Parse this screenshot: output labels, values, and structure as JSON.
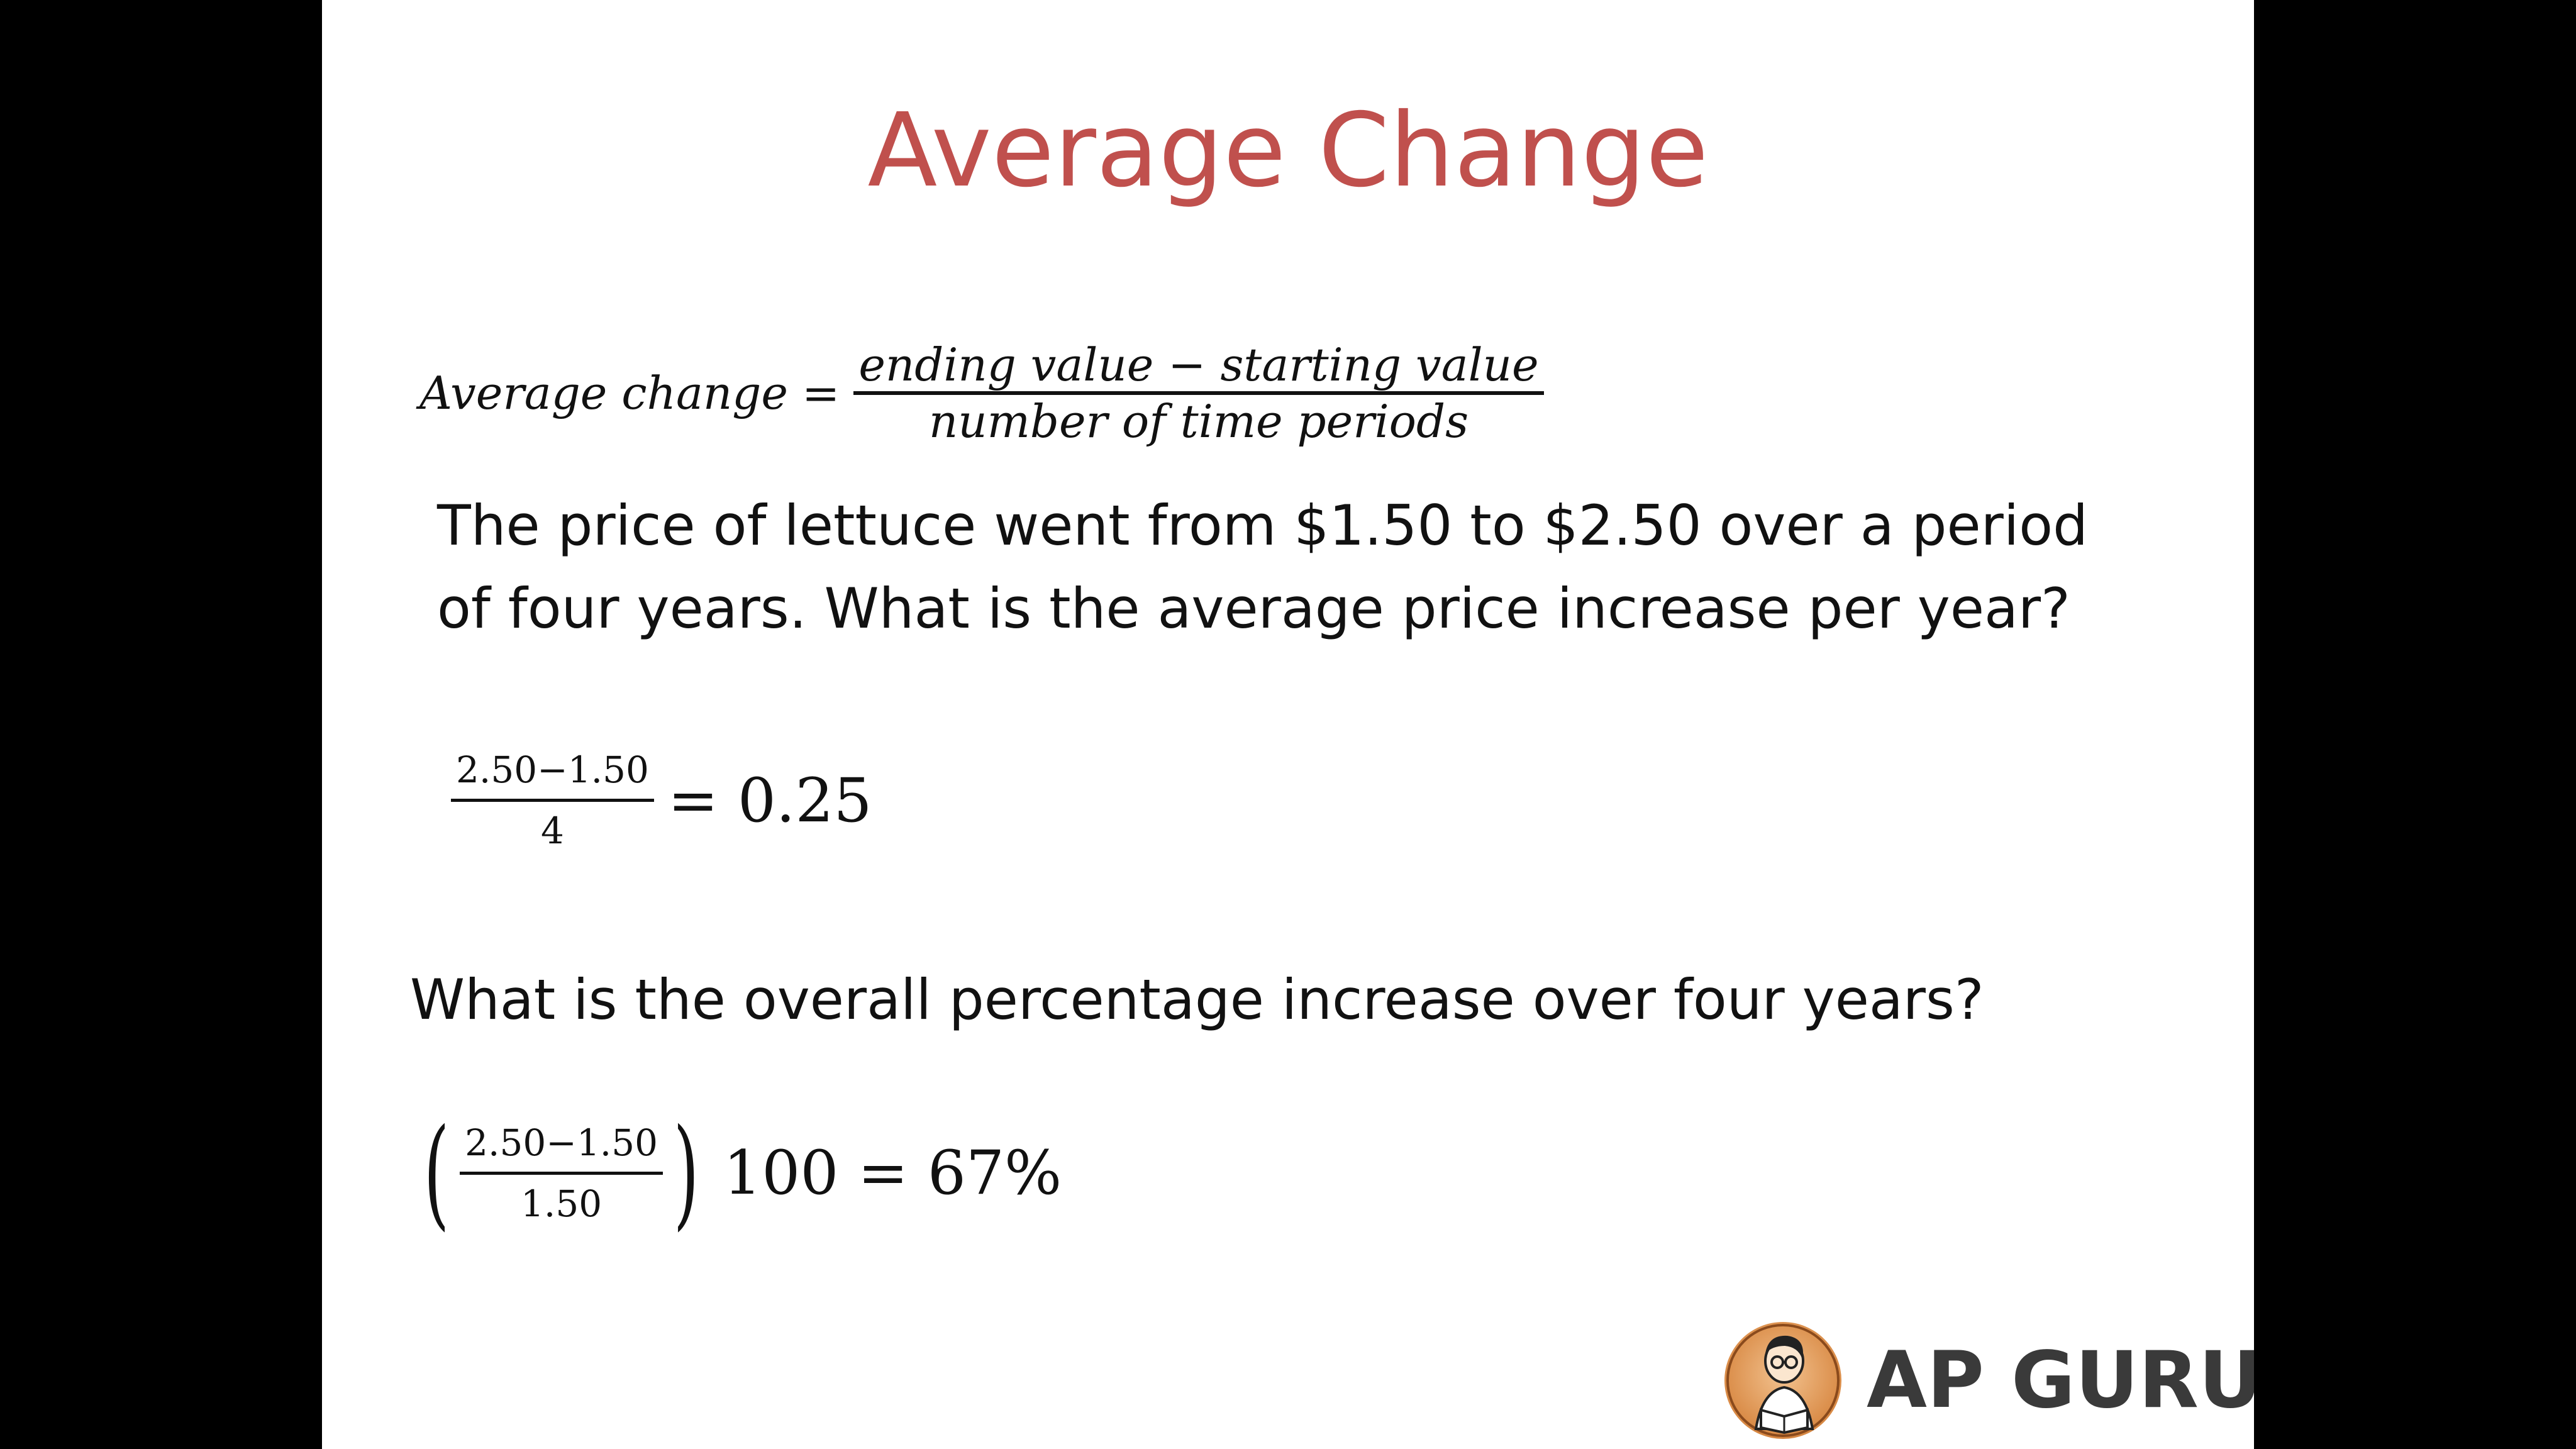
{
  "slide": {
    "title": "Average Change",
    "formula": {
      "lhs": "Average change",
      "equals": "=",
      "numerator": "ending value − starting value",
      "denominator": "number of time periods"
    },
    "question1": {
      "line1": "The price of lettuce went from $1.50 to $2.50 over a period",
      "line2": "of four years. What is the average price increase per year?"
    },
    "calc1": {
      "numerator": "2.50−1.50",
      "denominator": "4",
      "result": "= 0.25"
    },
    "question2": "What is the overall percentage increase over four years?",
    "calc2": {
      "open_paren": "(",
      "numerator": "2.50−1.50",
      "denominator": "1.50",
      "close_paren": ")",
      "result": "100 = 67%"
    },
    "logo": {
      "icon": "tutor-reading-icon",
      "text": "AP GURU"
    }
  },
  "colors": {
    "background": "#000000",
    "slide": "#ffffff",
    "title": "#c0504d",
    "text": "#111111"
  }
}
